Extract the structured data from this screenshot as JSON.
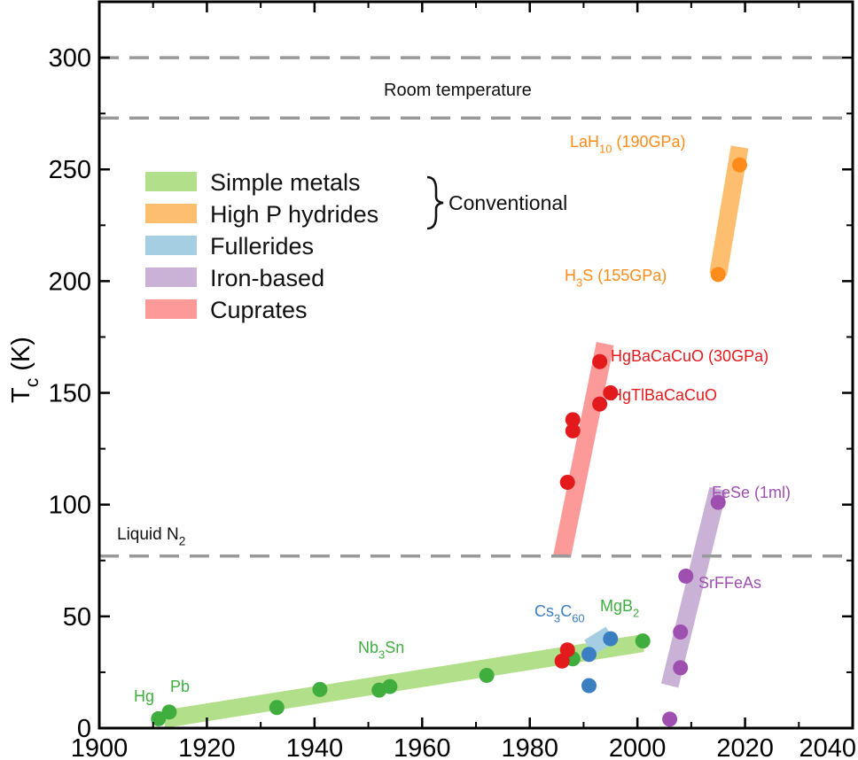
{
  "chart_data": {
    "type": "scatter",
    "xlim": [
      1900,
      2040
    ],
    "ylim": [
      0,
      325
    ],
    "x_ticks": [
      {
        "value": 1900,
        "label": "1900"
      },
      {
        "value": 1920,
        "label": "1920"
      },
      {
        "value": 1940,
        "label": "1940"
      },
      {
        "value": 1960,
        "label": "1960"
      },
      {
        "value": 1980,
        "label": "1980"
      },
      {
        "value": 2000,
        "label": "2000"
      },
      {
        "value": 2020,
        "label": "2020"
      },
      {
        "value": 2040,
        "label": "2040"
      }
    ],
    "y_ticks": [
      {
        "value": 0,
        "label": "0"
      },
      {
        "value": 50,
        "label": "50"
      },
      {
        "value": 100,
        "label": "100"
      },
      {
        "value": 150,
        "label": "150"
      },
      {
        "value": 200,
        "label": "200"
      },
      {
        "value": 250,
        "label": "250"
      },
      {
        "value": 300,
        "label": "300"
      }
    ],
    "ylabel": "T",
    "ylabel_sub": "c",
    "ylabel_unit": " (K)",
    "xlabel": "",
    "grid": false,
    "legend_position": "upper-left",
    "reference_lines": [
      {
        "y": 300
      },
      {
        "y": 273
      },
      {
        "y": 77
      }
    ],
    "reference_labels": [
      {
        "id": "room",
        "parts": [
          {
            "t": "Room temperature",
            "s": "n"
          }
        ]
      },
      {
        "id": "ln2",
        "parts": [
          {
            "t": "Liquid N",
            "s": "n"
          },
          {
            "t": "2",
            "s": "sub"
          }
        ]
      }
    ],
    "brace_label": "Conventional",
    "series": [
      {
        "name": "Simple metals",
        "color": "#3fae3f",
        "band_color": "#b2df8a",
        "band": [
          [
            1912,
            4
          ],
          [
            2001,
            38
          ]
        ],
        "points": [
          [
            1911,
            4.2
          ],
          [
            1913,
            7.2
          ],
          [
            1933,
            9.2
          ],
          [
            1941,
            17.3
          ],
          [
            1952,
            17
          ],
          [
            1954,
            18.6
          ],
          [
            1972,
            23.6
          ],
          [
            1988,
            31
          ],
          [
            2001,
            39
          ]
        ]
      },
      {
        "name": "High P hydrides",
        "color": "#ff8c1a",
        "band_color": "#fdbf6f",
        "band": [
          [
            2015,
            203
          ],
          [
            2019,
            260
          ]
        ],
        "points": [
          [
            2015,
            203
          ],
          [
            2019,
            252
          ]
        ]
      },
      {
        "name": "Fullerides",
        "color": "#3a7fc1",
        "band_color": "#a6cee3",
        "band": [
          [
            1991,
            36
          ],
          [
            1995,
            42
          ]
        ],
        "points": [
          [
            1991,
            33
          ],
          [
            1991,
            19
          ],
          [
            1995,
            40
          ]
        ]
      },
      {
        "name": "Iron-based",
        "color": "#9e4fb0",
        "band_color": "#cab2d6",
        "band": [
          [
            2006,
            19
          ],
          [
            2015,
            107
          ]
        ],
        "points": [
          [
            2006,
            4
          ],
          [
            2008,
            27
          ],
          [
            2008,
            43
          ],
          [
            2009,
            68
          ],
          [
            2015,
            101
          ]
        ]
      },
      {
        "name": "Cuprates",
        "color": "#e31a1c",
        "band_color": "#fb9a99",
        "band": [
          [
            1986,
            77
          ],
          [
            1994,
            172
          ]
        ],
        "points": [
          [
            1986,
            30
          ],
          [
            1987,
            35
          ],
          [
            1987,
            110
          ],
          [
            1988,
            133
          ],
          [
            1988,
            138
          ],
          [
            1993,
            145
          ],
          [
            1993,
            164
          ],
          [
            1995,
            150
          ]
        ]
      }
    ],
    "annotations": [
      {
        "id": "hg",
        "color": "#3fae3f",
        "parts": [
          {
            "t": "Hg",
            "s": "n"
          }
        ]
      },
      {
        "id": "pb",
        "color": "#3fae3f",
        "parts": [
          {
            "t": "Pb",
            "s": "n"
          }
        ]
      },
      {
        "id": "nb3sn",
        "color": "#3fae3f",
        "parts": [
          {
            "t": "Nb",
            "s": "n"
          },
          {
            "t": "3",
            "s": "sub"
          },
          {
            "t": "Sn",
            "s": "n"
          }
        ]
      },
      {
        "id": "mgb2",
        "color": "#3fae3f",
        "parts": [
          {
            "t": "MgB",
            "s": "n"
          },
          {
            "t": "2",
            "s": "sub"
          }
        ]
      },
      {
        "id": "cs3c60",
        "color": "#3a7fc1",
        "parts": [
          {
            "t": "Cs",
            "s": "n"
          },
          {
            "t": "3",
            "s": "sub"
          },
          {
            "t": "C",
            "s": "n"
          },
          {
            "t": "60",
            "s": "sub"
          }
        ]
      },
      {
        "id": "lah10",
        "color": "#ff8c1a",
        "parts": [
          {
            "t": "LaH",
            "s": "n"
          },
          {
            "t": "10",
            "s": "sub"
          },
          {
            "t": " (190GPa)",
            "s": "n"
          }
        ]
      },
      {
        "id": "h3s",
        "color": "#ff8c1a",
        "parts": [
          {
            "t": "H",
            "s": "n"
          },
          {
            "t": "3",
            "s": "sub"
          },
          {
            "t": "S (155GPa)",
            "s": "n"
          }
        ]
      },
      {
        "id": "hgbacacuo",
        "color": "#e31a1c",
        "parts": [
          {
            "t": "HgBaCaCuO (30GPa)",
            "s": "n"
          }
        ]
      },
      {
        "id": "hgtlbacacuo",
        "color": "#e31a1c",
        "parts": [
          {
            "t": "HgTlBaCaCuO",
            "s": "n"
          }
        ]
      },
      {
        "id": "fese",
        "color": "#9e4fb0",
        "parts": [
          {
            "t": "FeSe (1ml)",
            "s": "n"
          }
        ]
      },
      {
        "id": "srffeas",
        "color": "#9e4fb0",
        "parts": [
          {
            "t": "SrFFeAs",
            "s": "n"
          }
        ]
      }
    ]
  }
}
